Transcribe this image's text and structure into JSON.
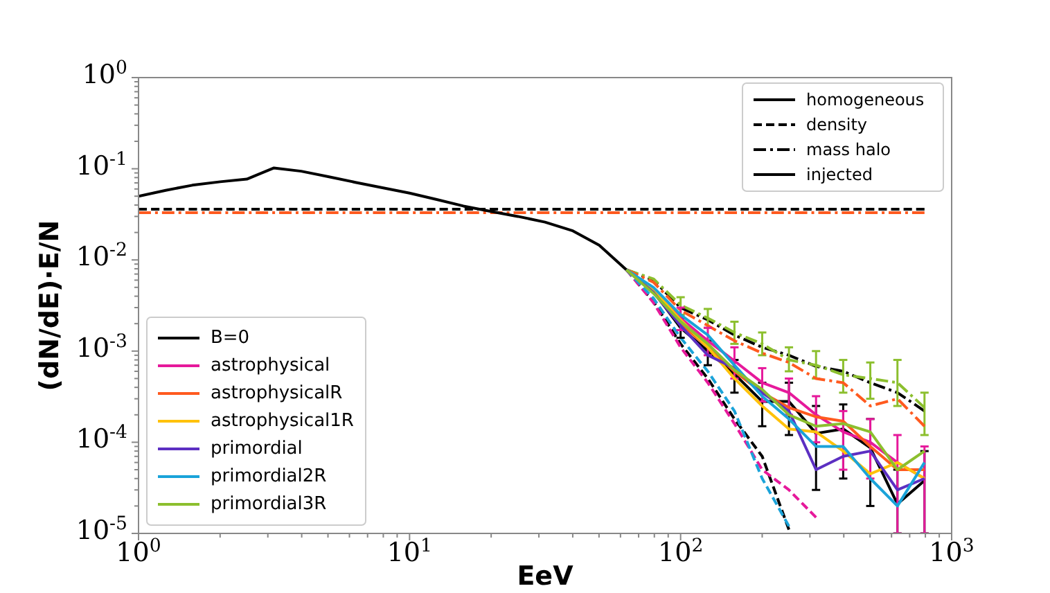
{
  "chart_data": {
    "type": "line",
    "xlabel": "EeV",
    "annotations": [
      "homogeneous",
      "density",
      "mass halo",
      "injected"
    ],
    "ylabel": "(dN/dE)·E/N",
    "log": "xy",
    "legend": "lower left",
    "xlim": [
      1,
      1000
    ],
    "ylim": [
      1e-05,
      1
    ],
    "xticks": [
      {
        "value": 1,
        "label": "10$^{0}$"
      },
      {
        "value": 2,
        "label": null
      },
      {
        "value": 3,
        "label": null
      },
      {
        "value": 4,
        "label": null
      },
      {
        "value": 5,
        "label": null
      },
      {
        "value": 6,
        "label": null
      },
      {
        "value": 7,
        "label": null
      },
      {
        "value": 8,
        "label": null
      },
      {
        "value": 9,
        "label": null
      },
      {
        "value": 10,
        "label": "10$^{1}$"
      },
      {
        "value": 20,
        "label": null
      },
      {
        "value": 30,
        "label": null
      },
      {
        "value": 40,
        "label": null
      },
      {
        "value": 50,
        "label": null
      },
      {
        "value": 60,
        "label": null
      },
      {
        "value": 70,
        "label": null
      },
      {
        "value": 80,
        "label": null
      },
      {
        "value": 90,
        "label": null
      },
      {
        "value": 100,
        "label": "10$^{2}$"
      },
      {
        "value": 200,
        "label": null
      },
      {
        "value": 300,
        "label": null
      },
      {
        "value": 400,
        "label": null
      },
      {
        "value": 500,
        "label": null
      },
      {
        "value": 600,
        "label": null
      },
      {
        "value": 700,
        "label": null
      },
      {
        "value": 800,
        "label": null
      },
      {
        "value": 900,
        "label": null
      },
      {
        "value": 1000,
        "label": "10$^{3}$"
      }
    ],
    "yticks": [
      {
        "value": 1e-05,
        "label": "10$^{-5}$"
      },
      {
        "value": 2e-05,
        "label": null
      },
      {
        "value": 3e-05,
        "label": null
      },
      {
        "value": 4e-05,
        "label": null
      },
      {
        "value": 5e-05,
        "label": null
      },
      {
        "value": 6e-05,
        "label": null
      },
      {
        "value": 7e-05,
        "label": null
      },
      {
        "value": 8e-05,
        "label": null
      },
      {
        "value": 9e-05,
        "label": null
      },
      {
        "value": 0.0001,
        "label": "10$^{-4}$"
      },
      {
        "value": 0.0002,
        "label": null
      },
      {
        "value": 0.0003,
        "label": null
      },
      {
        "value": 0.0004,
        "label": null
      },
      {
        "value": 0.0005,
        "label": null
      },
      {
        "value": 0.0006,
        "label": null
      },
      {
        "value": 0.0007,
        "label": null
      },
      {
        "value": 0.0008,
        "label": null
      },
      {
        "value": 0.0009,
        "label": null
      },
      {
        "value": 0.001,
        "label": "10$^{-3}$"
      },
      {
        "value": 0.002,
        "label": null
      },
      {
        "value": 0.003,
        "label": null
      },
      {
        "value": 0.004,
        "label": null
      },
      {
        "value": 0.005,
        "label": null
      },
      {
        "value": 0.006,
        "label": null
      },
      {
        "value": 0.007,
        "label": null
      },
      {
        "value": 0.008,
        "label": null
      },
      {
        "value": 0.009,
        "label": null
      },
      {
        "value": 0.01,
        "label": "10$^{-2}$"
      },
      {
        "value": 0.02,
        "label": null
      },
      {
        "value": 0.03,
        "label": null
      },
      {
        "value": 0.04,
        "label": null
      },
      {
        "value": 0.05,
        "label": null
      },
      {
        "value": 0.06,
        "label": null
      },
      {
        "value": 0.07,
        "label": null
      },
      {
        "value": 0.08,
        "label": null
      },
      {
        "value": 0.09,
        "label": null
      },
      {
        "value": 0.1,
        "label": "10$^{-1}$"
      },
      {
        "value": 0.2,
        "label": null
      },
      {
        "value": 0.3,
        "label": null
      },
      {
        "value": 0.4,
        "label": null
      },
      {
        "value": 0.5,
        "label": null
      },
      {
        "value": 0.6,
        "label": null
      },
      {
        "value": 0.7,
        "label": null
      },
      {
        "value": 0.8,
        "label": null
      },
      {
        "value": 0.9,
        "label": null
      },
      {
        "value": 1,
        "label": "10$^{0}$"
      }
    ],
    "x": [
      1,
      1.26,
      1.58,
      2,
      2.51,
      3.16,
      3.98,
      5.01,
      6.31,
      7.94,
      10,
      12.6,
      15.8,
      20,
      25.1,
      31.6,
      39.8,
      50.1,
      63.1,
      79.4,
      100,
      126,
      158,
      200,
      251,
      316,
      398,
      501,
      631,
      794
    ],
    "series": [
      {
        "color": "#000000",
        "line_style": "dashed",
        "values": [
          0.036,
          0.036,
          0.036,
          0.036,
          0.036,
          0.036,
          0.036,
          0.036,
          0.036,
          0.036,
          0.036,
          0.036,
          0.036,
          0.036,
          0.036,
          0.036,
          0.036,
          0.036,
          0.036,
          0.036,
          0.036,
          0.036,
          0.036,
          0.036,
          0.036,
          0.036,
          0.036,
          0.036,
          0.036,
          0.036
        ]
      },
      {
        "color": "#ff5a1f",
        "line_style": "dashdot",
        "values": [
          0.033,
          0.033,
          0.033,
          0.033,
          0.033,
          0.033,
          0.033,
          0.033,
          0.033,
          0.033,
          0.033,
          0.033,
          0.033,
          0.033,
          0.033,
          0.033,
          0.033,
          0.033,
          0.033,
          0.033,
          0.033,
          0.033,
          0.033,
          0.033,
          0.033,
          0.033,
          0.033,
          0.033,
          0.033,
          0.033
        ]
      },
      {
        "color": "#000000",
        "line_style": "dashed",
        "values": [
          null,
          null,
          null,
          null,
          null,
          null,
          null,
          null,
          null,
          null,
          null,
          null,
          null,
          null,
          null,
          null,
          null,
          null,
          0.0078,
          0.0035,
          0.0012,
          0.0005,
          0.00018,
          7e-05,
          1.1e-05,
          null,
          null,
          null,
          null,
          null
        ]
      },
      {
        "color": "#e6199b",
        "line_style": "dashed",
        "values": [
          null,
          null,
          null,
          null,
          null,
          null,
          null,
          null,
          null,
          null,
          null,
          null,
          null,
          null,
          null,
          null,
          null,
          null,
          0.0078,
          0.0034,
          0.0011,
          0.00045,
          0.00016,
          5e-05,
          3e-05,
          1.5e-05,
          null,
          null,
          null,
          null
        ]
      },
      {
        "color": "#1aa3d9",
        "line_style": "dashed",
        "values": [
          null,
          null,
          null,
          null,
          null,
          null,
          null,
          null,
          null,
          null,
          null,
          null,
          null,
          null,
          null,
          null,
          null,
          null,
          0.0078,
          0.0038,
          0.0014,
          0.0006,
          0.00022,
          4e-05,
          1.2e-05,
          null,
          null,
          null,
          null,
          null
        ]
      },
      {
        "color": "#000000",
        "line_style": "dashdot",
        "values": [
          null,
          null,
          null,
          null,
          null,
          null,
          null,
          null,
          null,
          null,
          null,
          null,
          null,
          null,
          null,
          null,
          null,
          null,
          0.0078,
          0.006,
          0.003,
          0.0022,
          0.0015,
          0.0011,
          0.0009,
          0.00068,
          0.0006,
          0.00045,
          0.00035,
          0.00022
        ]
      },
      {
        "color": "#8cbf2e",
        "line_style": "dashdot",
        "values": [
          null,
          null,
          null,
          null,
          null,
          null,
          null,
          null,
          null,
          null,
          null,
          null,
          null,
          null,
          null,
          null,
          null,
          null,
          0.0078,
          0.0062,
          0.0032,
          0.0023,
          0.0016,
          0.0012,
          0.0008,
          0.0007,
          0.00055,
          0.0005,
          0.00045,
          0.00024
        ],
        "errors": [
          null,
          null,
          null,
          null,
          null,
          null,
          null,
          null,
          null,
          null,
          null,
          null,
          null,
          null,
          null,
          null,
          null,
          null,
          null,
          null,
          [
            0.0025,
            0.0039
          ],
          [
            0.0018,
            0.0029
          ],
          [
            0.0012,
            0.0021
          ],
          [
            0.0009,
            0.0016
          ],
          [
            0.0006,
            0.0011
          ],
          [
            0.0005,
            0.001
          ],
          [
            0.00035,
            0.0008
          ],
          [
            0.0003,
            0.00075
          ],
          [
            0.00025,
            0.0008
          ],
          [
            0.00012,
            0.00035
          ]
        ]
      },
      {
        "color": "#ff5a1f",
        "line_style": "dashdot",
        "values": [
          null,
          null,
          null,
          null,
          null,
          null,
          null,
          null,
          null,
          null,
          null,
          null,
          null,
          null,
          null,
          null,
          null,
          null,
          0.0078,
          0.0057,
          0.0028,
          0.0019,
          0.0013,
          0.00095,
          0.00075,
          0.0005,
          0.00045,
          0.00025,
          0.0003,
          0.00015
        ]
      },
      {
        "name": "B=0",
        "color": "#000000",
        "line_style": "solid",
        "values": [
          0.05,
          0.058,
          0.066,
          0.072,
          0.077,
          0.102,
          0.094,
          0.082,
          0.071,
          0.062,
          0.054,
          0.046,
          0.039,
          0.034,
          0.03,
          0.026,
          0.021,
          0.0145,
          0.0078,
          0.0045,
          0.0018,
          0.001,
          0.00056,
          0.00028,
          0.00028,
          0.000125,
          0.00014,
          8.7e-05,
          2.1e-05,
          3.8e-05
        ],
        "errors": [
          null,
          null,
          null,
          null,
          null,
          null,
          null,
          null,
          null,
          null,
          null,
          null,
          null,
          null,
          null,
          null,
          null,
          null,
          null,
          null,
          [
            0.0014,
            0.0023
          ],
          [
            0.0007,
            0.0013
          ],
          [
            0.00035,
            0.0008
          ],
          [
            0.00015,
            0.00045
          ],
          [
            0.00012,
            0.00045
          ],
          [
            3e-05,
            0.00025
          ],
          [
            4e-05,
            0.00026
          ],
          [
            2e-05,
            0.00018
          ],
          [
            1e-05,
            5e-05
          ],
          [
            1e-05,
            8e-05
          ]
        ]
      },
      {
        "name": "astrophysical",
        "color": "#e6199b",
        "line_style": "solid",
        "values": [
          null,
          null,
          null,
          null,
          null,
          null,
          null,
          null,
          null,
          null,
          null,
          null,
          null,
          null,
          null,
          null,
          null,
          null,
          0.0078,
          0.0048,
          0.0023,
          0.0013,
          0.00078,
          0.00045,
          0.00035,
          0.0002,
          0.00013,
          0.0001,
          6e-05,
          4e-05
        ],
        "errors": [
          null,
          null,
          null,
          null,
          null,
          null,
          null,
          null,
          null,
          null,
          null,
          null,
          null,
          null,
          null,
          null,
          null,
          null,
          null,
          null,
          [
            0.0017,
            0.003
          ],
          [
            0.0009,
            0.0018
          ],
          [
            0.0005,
            0.0011
          ],
          [
            0.00028,
            0.00065
          ],
          [
            0.0002,
            0.0005
          ],
          [
            0.0001,
            0.00032
          ],
          [
            5e-05,
            0.00022
          ],
          [
            4e-05,
            0.00018
          ],
          [
            1e-05,
            0.00012
          ],
          [
            1e-05,
            9e-05
          ]
        ]
      },
      {
        "name": "astrophysicalR",
        "color": "#ff5a1f",
        "line_style": "solid",
        "values": [
          null,
          null,
          null,
          null,
          null,
          null,
          null,
          null,
          null,
          null,
          null,
          null,
          null,
          null,
          null,
          null,
          null,
          null,
          0.0078,
          0.0046,
          0.002,
          0.0011,
          0.0006,
          0.00035,
          0.00024,
          0.00019,
          0.00017,
          9e-05,
          5e-05,
          5e-05
        ]
      },
      {
        "name": "astrophysical1R",
        "color": "#ffc20a",
        "line_style": "solid",
        "values": [
          null,
          null,
          null,
          null,
          null,
          null,
          null,
          null,
          null,
          null,
          null,
          null,
          null,
          null,
          null,
          null,
          null,
          null,
          0.0078,
          0.0047,
          0.0022,
          0.0011,
          0.0005,
          0.00025,
          0.00014,
          0.00013,
          8e-05,
          4.5e-05,
          6e-05,
          4e-05
        ]
      },
      {
        "name": "primordial",
        "color": "#5c2fc2",
        "line_style": "solid",
        "values": [
          null,
          null,
          null,
          null,
          null,
          null,
          null,
          null,
          null,
          null,
          null,
          null,
          null,
          null,
          null,
          null,
          null,
          null,
          0.0078,
          0.0044,
          0.0019,
          0.0009,
          0.00065,
          0.00035,
          0.00022,
          5e-05,
          7e-05,
          8e-05,
          3e-05,
          4e-05
        ]
      },
      {
        "name": "primordial2R",
        "color": "#1aa3d9",
        "line_style": "solid",
        "values": [
          null,
          null,
          null,
          null,
          null,
          null,
          null,
          null,
          null,
          null,
          null,
          null,
          null,
          null,
          null,
          null,
          null,
          null,
          0.0078,
          0.005,
          0.0025,
          0.0015,
          0.0007,
          0.00032,
          0.00018,
          9e-05,
          9e-05,
          4e-05,
          2e-05,
          6e-05
        ]
      },
      {
        "name": "primordial3R",
        "color": "#8cbf2e",
        "line_style": "solid",
        "values": [
          null,
          null,
          null,
          null,
          null,
          null,
          null,
          null,
          null,
          null,
          null,
          null,
          null,
          null,
          null,
          null,
          null,
          null,
          0.0078,
          0.0043,
          0.0021,
          0.0012,
          0.00062,
          0.00038,
          0.0002,
          0.00015,
          0.00016,
          0.00013,
          5e-05,
          8e-05
        ]
      }
    ]
  }
}
